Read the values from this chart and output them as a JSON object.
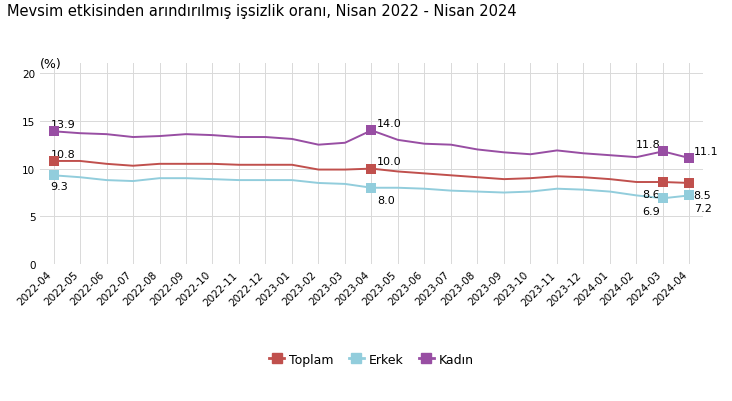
{
  "title": "Mevsim etkisinden arındırılmış işsizlik oranı, Nisan 2022 - Nisan 2024",
  "ylabel": "(%)",
  "ylim": [
    0,
    21
  ],
  "yticks": [
    0,
    5,
    10,
    15,
    20
  ],
  "labels": [
    "2022-04",
    "2022-05",
    "2022-06",
    "2022-07",
    "2022-08",
    "2022-09",
    "2022-10",
    "2022-11",
    "2022-12",
    "2023-01",
    "2023-02",
    "2023-03",
    "2023-04",
    "2023-05",
    "2023-06",
    "2023-07",
    "2023-08",
    "2023-09",
    "2023-10",
    "2023-11",
    "2023-12",
    "2024-01",
    "2024-02",
    "2024-03",
    "2024-04"
  ],
  "toplam": [
    10.8,
    10.8,
    10.5,
    10.3,
    10.5,
    10.5,
    10.5,
    10.4,
    10.4,
    10.4,
    9.9,
    9.9,
    10.0,
    9.7,
    9.5,
    9.3,
    9.1,
    8.9,
    9.0,
    9.2,
    9.1,
    8.9,
    8.6,
    8.6,
    8.5
  ],
  "erkek": [
    9.3,
    9.1,
    8.8,
    8.7,
    9.0,
    9.0,
    8.9,
    8.8,
    8.8,
    8.8,
    8.5,
    8.4,
    8.0,
    8.0,
    7.9,
    7.7,
    7.6,
    7.5,
    7.6,
    7.9,
    7.8,
    7.6,
    7.2,
    6.9,
    7.2
  ],
  "kadin": [
    13.9,
    13.7,
    13.6,
    13.3,
    13.4,
    13.6,
    13.5,
    13.3,
    13.3,
    13.1,
    12.5,
    12.7,
    14.0,
    13.0,
    12.6,
    12.5,
    12.0,
    11.7,
    11.5,
    11.9,
    11.6,
    11.4,
    11.2,
    11.8,
    11.1
  ],
  "toplam_color": "#c0504d",
  "erkek_color": "#92cddc",
  "kadin_color": "#984ea3",
  "marker_size": 7,
  "linewidth": 1.4,
  "background_color": "#ffffff",
  "grid_color": "#d9d9d9",
  "title_fontsize": 10.5,
  "ylabel_fontsize": 9,
  "tick_fontsize": 7.5,
  "annot_fontsize": 8,
  "legend_labels": [
    "Toplam",
    "Erkek",
    "Kadın"
  ],
  "marker_indices": [
    0,
    12,
    23,
    24
  ]
}
